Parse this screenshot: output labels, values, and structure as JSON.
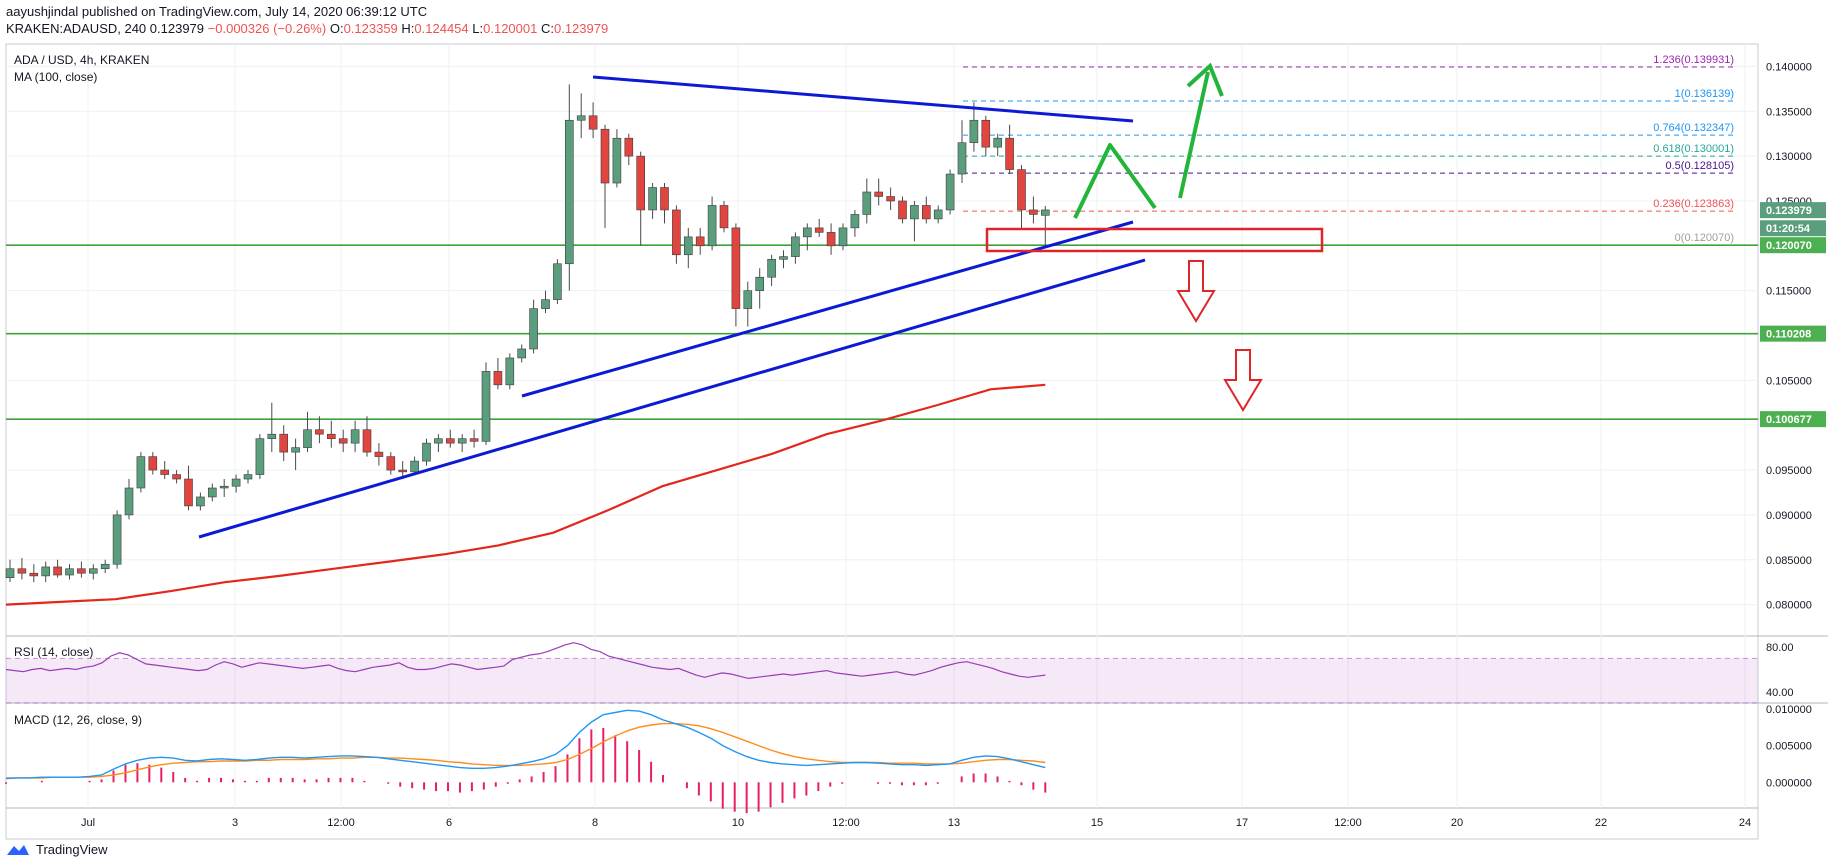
{
  "header": {
    "author": "aayushjindal",
    "published_text": "published on TradingView.com, July 14, 2020 06:39:12 UTC",
    "symbol": "KRAKEN:ADAUSD, 240",
    "price_line": "0.123979",
    "change_line": "−0.000326 (−0.26%)",
    "o_label": "O:",
    "o_value": "0.123359",
    "h_label": "H:",
    "h_value": "0.124454",
    "l_label": "L:",
    "l_value": "0.120001",
    "c_label": "C:",
    "c_value": "0.123979"
  },
  "footer": {
    "brand": "TradingView"
  },
  "colors": {
    "up": "#5b9e7e",
    "down": "#e0453f",
    "trend": "#0d1ad4",
    "support": "#3fa33a",
    "ma": "#e3271c",
    "arrow_up": "#23b53a",
    "arrow_down": "#e0262a",
    "rsi": "#9b3bb5",
    "macd": "#2196f3",
    "signal": "#ff8c1a",
    "hist": "#e91e63"
  },
  "chart_data": [
    {
      "type": "candlestick",
      "title": "ADA / USD, 4h, KRAKEN",
      "indicator_label": "MA (100, close)",
      "x_ticks": [
        "Jul",
        "3",
        "12:00",
        "6",
        "8",
        "10",
        "12:00",
        "13",
        "15",
        "17",
        "12:00",
        "20",
        "22",
        "24"
      ],
      "y_ticks": [
        "0.140000",
        "0.135000",
        "0.130000",
        "0.125000",
        "0.115000",
        "0.105000",
        "0.095000",
        "0.090000",
        "0.085000",
        "0.080000"
      ],
      "ylim": [
        0.0765,
        0.1425
      ],
      "price_badges": [
        {
          "label": "0.123979",
          "value": 0.123979,
          "color": "#5b9e7e"
        },
        {
          "label": "01:20:54",
          "value": 0.12196,
          "color": "#5b9e7e"
        },
        {
          "label": "0.120070",
          "value": 0.12007,
          "color": "#4caf50"
        },
        {
          "label": "0.110208",
          "value": 0.110208,
          "color": "#4caf50"
        },
        {
          "label": "0.100677",
          "value": 0.100677,
          "color": "#4caf50"
        }
      ],
      "support_levels": [
        0.12007,
        0.110208,
        0.100677
      ],
      "fibonacci": [
        {
          "ratio": "1.236",
          "label": "1.236(0.139931)",
          "value": 0.139931,
          "color": "#9c27b0"
        },
        {
          "ratio": "1",
          "label": "1(0.136139)",
          "value": 0.136139,
          "color": "#2196f3"
        },
        {
          "ratio": "0.764",
          "label": "0.764(0.132347)",
          "value": 0.132347,
          "color": "#2196f3"
        },
        {
          "ratio": "0.618",
          "label": "0.618(0.130001)",
          "value": 0.130001,
          "color": "#26a69a"
        },
        {
          "ratio": "0.5",
          "label": "0.5(0.128105)",
          "value": 0.128105,
          "color": "#4a148c"
        },
        {
          "ratio": "0.236",
          "label": "0.236(0.123863)",
          "value": 0.123863,
          "color": "#ef5350"
        },
        {
          "ratio": "0",
          "label": "0(0.120070)",
          "value": 0.12007,
          "color": "#9e9e9e"
        }
      ],
      "candles": [
        {
          "o": 0.083,
          "h": 0.085,
          "l": 0.0825,
          "c": 0.084
        },
        {
          "o": 0.084,
          "h": 0.0852,
          "l": 0.0828,
          "c": 0.0835
        },
        {
          "o": 0.0835,
          "h": 0.0845,
          "l": 0.0825,
          "c": 0.0832
        },
        {
          "o": 0.0832,
          "h": 0.0848,
          "l": 0.0825,
          "c": 0.0842
        },
        {
          "o": 0.0842,
          "h": 0.085,
          "l": 0.083,
          "c": 0.0833
        },
        {
          "o": 0.0833,
          "h": 0.0845,
          "l": 0.0828,
          "c": 0.084
        },
        {
          "o": 0.084,
          "h": 0.0848,
          "l": 0.083,
          "c": 0.0835
        },
        {
          "o": 0.0835,
          "h": 0.0845,
          "l": 0.0828,
          "c": 0.084
        },
        {
          "o": 0.084,
          "h": 0.085,
          "l": 0.0835,
          "c": 0.0845
        },
        {
          "o": 0.0845,
          "h": 0.0905,
          "l": 0.084,
          "c": 0.09
        },
        {
          "o": 0.09,
          "h": 0.094,
          "l": 0.0895,
          "c": 0.093
        },
        {
          "o": 0.093,
          "h": 0.097,
          "l": 0.0925,
          "c": 0.0965
        },
        {
          "o": 0.0965,
          "h": 0.097,
          "l": 0.0945,
          "c": 0.095
        },
        {
          "o": 0.095,
          "h": 0.096,
          "l": 0.094,
          "c": 0.0945
        },
        {
          "o": 0.0945,
          "h": 0.095,
          "l": 0.0935,
          "c": 0.094
        },
        {
          "o": 0.094,
          "h": 0.0955,
          "l": 0.0905,
          "c": 0.091
        },
        {
          "o": 0.091,
          "h": 0.0925,
          "l": 0.0905,
          "c": 0.092
        },
        {
          "o": 0.092,
          "h": 0.0935,
          "l": 0.0915,
          "c": 0.093
        },
        {
          "o": 0.093,
          "h": 0.094,
          "l": 0.092,
          "c": 0.0932
        },
        {
          "o": 0.0932,
          "h": 0.0945,
          "l": 0.0925,
          "c": 0.094
        },
        {
          "o": 0.094,
          "h": 0.095,
          "l": 0.0935,
          "c": 0.0945
        },
        {
          "o": 0.0945,
          "h": 0.099,
          "l": 0.094,
          "c": 0.0985
        },
        {
          "o": 0.0985,
          "h": 0.1025,
          "l": 0.097,
          "c": 0.099
        },
        {
          "o": 0.099,
          "h": 0.1,
          "l": 0.096,
          "c": 0.097
        },
        {
          "o": 0.097,
          "h": 0.0985,
          "l": 0.095,
          "c": 0.0975
        },
        {
          "o": 0.0975,
          "h": 0.1015,
          "l": 0.097,
          "c": 0.0995
        },
        {
          "o": 0.0995,
          "h": 0.101,
          "l": 0.098,
          "c": 0.099
        },
        {
          "o": 0.099,
          "h": 0.1005,
          "l": 0.0975,
          "c": 0.0985
        },
        {
          "o": 0.0985,
          "h": 0.0995,
          "l": 0.097,
          "c": 0.098
        },
        {
          "o": 0.098,
          "h": 0.1005,
          "l": 0.097,
          "c": 0.0995
        },
        {
          "o": 0.0995,
          "h": 0.101,
          "l": 0.0965,
          "c": 0.097
        },
        {
          "o": 0.097,
          "h": 0.098,
          "l": 0.0955,
          "c": 0.0965
        },
        {
          "o": 0.0965,
          "h": 0.097,
          "l": 0.0945,
          "c": 0.095
        },
        {
          "o": 0.095,
          "h": 0.096,
          "l": 0.094,
          "c": 0.0948
        },
        {
          "o": 0.0948,
          "h": 0.0965,
          "l": 0.0945,
          "c": 0.096
        },
        {
          "o": 0.096,
          "h": 0.0985,
          "l": 0.0955,
          "c": 0.098
        },
        {
          "o": 0.098,
          "h": 0.099,
          "l": 0.097,
          "c": 0.0985
        },
        {
          "o": 0.0985,
          "h": 0.0995,
          "l": 0.0975,
          "c": 0.098
        },
        {
          "o": 0.098,
          "h": 0.099,
          "l": 0.097,
          "c": 0.0985
        },
        {
          "o": 0.0985,
          "h": 0.0995,
          "l": 0.0975,
          "c": 0.0982
        },
        {
          "o": 0.0982,
          "h": 0.107,
          "l": 0.0978,
          "c": 0.106
        },
        {
          "o": 0.106,
          "h": 0.1075,
          "l": 0.104,
          "c": 0.1045
        },
        {
          "o": 0.1045,
          "h": 0.108,
          "l": 0.104,
          "c": 0.1075
        },
        {
          "o": 0.1075,
          "h": 0.109,
          "l": 0.107,
          "c": 0.1085
        },
        {
          "o": 0.1085,
          "h": 0.114,
          "l": 0.108,
          "c": 0.113
        },
        {
          "o": 0.113,
          "h": 0.115,
          "l": 0.1125,
          "c": 0.114
        },
        {
          "o": 0.114,
          "h": 0.1185,
          "l": 0.1135,
          "c": 0.118
        },
        {
          "o": 0.118,
          "h": 0.138,
          "l": 0.115,
          "c": 0.134
        },
        {
          "o": 0.134,
          "h": 0.137,
          "l": 0.132,
          "c": 0.1345
        },
        {
          "o": 0.1345,
          "h": 0.136,
          "l": 0.132,
          "c": 0.133
        },
        {
          "o": 0.133,
          "h": 0.1335,
          "l": 0.122,
          "c": 0.127
        },
        {
          "o": 0.127,
          "h": 0.133,
          "l": 0.1265,
          "c": 0.132
        },
        {
          "o": 0.132,
          "h": 0.1325,
          "l": 0.129,
          "c": 0.13
        },
        {
          "o": 0.13,
          "h": 0.1305,
          "l": 0.12,
          "c": 0.124
        },
        {
          "o": 0.124,
          "h": 0.127,
          "l": 0.123,
          "c": 0.1265
        },
        {
          "o": 0.1265,
          "h": 0.127,
          "l": 0.1225,
          "c": 0.124
        },
        {
          "o": 0.124,
          "h": 0.1245,
          "l": 0.118,
          "c": 0.119
        },
        {
          "o": 0.119,
          "h": 0.122,
          "l": 0.1175,
          "c": 0.121
        },
        {
          "o": 0.121,
          "h": 0.122,
          "l": 0.119,
          "c": 0.12
        },
        {
          "o": 0.12,
          "h": 0.1255,
          "l": 0.1195,
          "c": 0.1245
        },
        {
          "o": 0.1245,
          "h": 0.125,
          "l": 0.1215,
          "c": 0.122
        },
        {
          "o": 0.122,
          "h": 0.1225,
          "l": 0.111,
          "c": 0.113
        },
        {
          "o": 0.113,
          "h": 0.116,
          "l": 0.111,
          "c": 0.115
        },
        {
          "o": 0.115,
          "h": 0.1175,
          "l": 0.113,
          "c": 0.1165
        },
        {
          "o": 0.1165,
          "h": 0.119,
          "l": 0.1155,
          "c": 0.1185
        },
        {
          "o": 0.1185,
          "h": 0.1195,
          "l": 0.1175,
          "c": 0.1188
        },
        {
          "o": 0.1188,
          "h": 0.1215,
          "l": 0.118,
          "c": 0.121
        },
        {
          "o": 0.121,
          "h": 0.1225,
          "l": 0.1195,
          "c": 0.122
        },
        {
          "o": 0.122,
          "h": 0.123,
          "l": 0.121,
          "c": 0.1215
        },
        {
          "o": 0.1215,
          "h": 0.1225,
          "l": 0.119,
          "c": 0.12
        },
        {
          "o": 0.12,
          "h": 0.1225,
          "l": 0.1195,
          "c": 0.122
        },
        {
          "o": 0.122,
          "h": 0.124,
          "l": 0.121,
          "c": 0.1235
        },
        {
          "o": 0.1235,
          "h": 0.1275,
          "l": 0.1225,
          "c": 0.126
        },
        {
          "o": 0.126,
          "h": 0.1275,
          "l": 0.1245,
          "c": 0.1255
        },
        {
          "o": 0.1255,
          "h": 0.1265,
          "l": 0.124,
          "c": 0.125
        },
        {
          "o": 0.125,
          "h": 0.1255,
          "l": 0.1225,
          "c": 0.123
        },
        {
          "o": 0.123,
          "h": 0.125,
          "l": 0.1205,
          "c": 0.1245
        },
        {
          "o": 0.1245,
          "h": 0.1255,
          "l": 0.1225,
          "c": 0.123
        },
        {
          "o": 0.123,
          "h": 0.1245,
          "l": 0.1225,
          "c": 0.124
        },
        {
          "o": 0.124,
          "h": 0.1285,
          "l": 0.1235,
          "c": 0.128
        },
        {
          "o": 0.128,
          "h": 0.134,
          "l": 0.127,
          "c": 0.1315
        },
        {
          "o": 0.1315,
          "h": 0.136,
          "l": 0.1305,
          "c": 0.134
        },
        {
          "o": 0.134,
          "h": 0.1345,
          "l": 0.13,
          "c": 0.131
        },
        {
          "o": 0.131,
          "h": 0.1325,
          "l": 0.13,
          "c": 0.132
        },
        {
          "o": 0.132,
          "h": 0.1335,
          "l": 0.128,
          "c": 0.1285
        },
        {
          "o": 0.1285,
          "h": 0.129,
          "l": 0.122,
          "c": 0.124
        },
        {
          "o": 0.124,
          "h": 0.1255,
          "l": 0.1225,
          "c": 0.1235
        },
        {
          "o": 0.1234,
          "h": 0.12445,
          "l": 0.12,
          "c": 0.124
        }
      ],
      "ma_100": [
        0.08,
        0.0803,
        0.0806,
        0.0815,
        0.0825,
        0.0832,
        0.084,
        0.0848,
        0.0856,
        0.0866,
        0.088,
        0.0905,
        0.0932,
        0.095,
        0.0968,
        0.099,
        0.1005,
        0.1022,
        0.104,
        0.1045
      ],
      "annotations": [
        "triangle resistance line",
        "triangle support line",
        "rising support line",
        "support box",
        "upside path arrow",
        "downside arrows"
      ]
    },
    {
      "type": "line",
      "title": "RSI (14, close)",
      "y_ticks": [
        "80.00",
        "40.00"
      ],
      "ylim": [
        30,
        90
      ],
      "band": [
        70,
        30
      ],
      "values": [
        60,
        59,
        58,
        60,
        61,
        59,
        60,
        61,
        60,
        62,
        63,
        66,
        72,
        75,
        73,
        69,
        65,
        64,
        63,
        62,
        61,
        60,
        59,
        60,
        64,
        67,
        65,
        62,
        64,
        66,
        65,
        64,
        63,
        62,
        61,
        62,
        63,
        64,
        61,
        59,
        58,
        60,
        62,
        63,
        64,
        66,
        62,
        60,
        60,
        61,
        63,
        65,
        64,
        62,
        60,
        61,
        62,
        63,
        69,
        71,
        73,
        74,
        76,
        79,
        82,
        84,
        82,
        78,
        76,
        72,
        70,
        68,
        66,
        64,
        62,
        61,
        60,
        61,
        58,
        55,
        53,
        55,
        57,
        56,
        54,
        52,
        53,
        54,
        55,
        56,
        55,
        56,
        57,
        58,
        59,
        57,
        56,
        55,
        54,
        55,
        56,
        57,
        58,
        56,
        55,
        57,
        59,
        62,
        64,
        66,
        67,
        65,
        63,
        61,
        58,
        56,
        54,
        53,
        54,
        55
      ]
    },
    {
      "type": "bar_line",
      "title": "MACD (12, 26, close, 9)",
      "y_ticks": [
        "0.010000",
        "0.005000",
        "0.000000"
      ],
      "ylim": [
        -0.0035,
        0.0108
      ],
      "macd": [
        0.0005,
        0.0006,
        0.0006,
        0.0007,
        0.0007,
        0.0007,
        0.0007,
        0.0008,
        0.001,
        0.0018,
        0.0025,
        0.003,
        0.0033,
        0.0034,
        0.0033,
        0.003,
        0.0029,
        0.0031,
        0.0032,
        0.0031,
        0.003,
        0.0031,
        0.0033,
        0.0034,
        0.0034,
        0.0033,
        0.0034,
        0.0035,
        0.0036,
        0.0036,
        0.0035,
        0.0034,
        0.0032,
        0.003,
        0.0028,
        0.0026,
        0.0024,
        0.0022,
        0.002,
        0.0019,
        0.0019,
        0.002,
        0.0022,
        0.0025,
        0.0028,
        0.0032,
        0.0038,
        0.005,
        0.0068,
        0.0082,
        0.0092,
        0.0095,
        0.0098,
        0.0097,
        0.0092,
        0.0085,
        0.008,
        0.0075,
        0.0068,
        0.006,
        0.005,
        0.0042,
        0.0035,
        0.003,
        0.0027,
        0.0025,
        0.0024,
        0.0023,
        0.0024,
        0.0025,
        0.0026,
        0.0027,
        0.0027,
        0.0026,
        0.0025,
        0.0024,
        0.0024,
        0.0023,
        0.0024,
        0.0025,
        0.003,
        0.0034,
        0.0036,
        0.0035,
        0.0032,
        0.0028,
        0.0024,
        0.002
      ],
      "signal": [
        0.0006,
        0.0006,
        0.0006,
        0.0006,
        0.0007,
        0.0007,
        0.0007,
        0.0007,
        0.0008,
        0.001,
        0.0013,
        0.0017,
        0.0021,
        0.0024,
        0.0026,
        0.0027,
        0.0028,
        0.0028,
        0.0029,
        0.0029,
        0.0029,
        0.003,
        0.003,
        0.0031,
        0.0031,
        0.0031,
        0.0032,
        0.0032,
        0.0033,
        0.0033,
        0.0034,
        0.0034,
        0.0033,
        0.0033,
        0.0032,
        0.0031,
        0.003,
        0.0028,
        0.0027,
        0.0025,
        0.0024,
        0.0023,
        0.0023,
        0.0023,
        0.0024,
        0.0025,
        0.0027,
        0.0031,
        0.0038,
        0.0046,
        0.0055,
        0.0063,
        0.007,
        0.0075,
        0.0078,
        0.008,
        0.008,
        0.0079,
        0.0077,
        0.0073,
        0.0068,
        0.0062,
        0.0056,
        0.005,
        0.0044,
        0.0039,
        0.0035,
        0.0032,
        0.003,
        0.0028,
        0.0027,
        0.0027,
        0.0027,
        0.0027,
        0.0026,
        0.0026,
        0.0026,
        0.0025,
        0.0025,
        0.0025,
        0.0026,
        0.0028,
        0.003,
        0.0031,
        0.0031,
        0.003,
        0.0029,
        0.0027
      ]
    }
  ]
}
